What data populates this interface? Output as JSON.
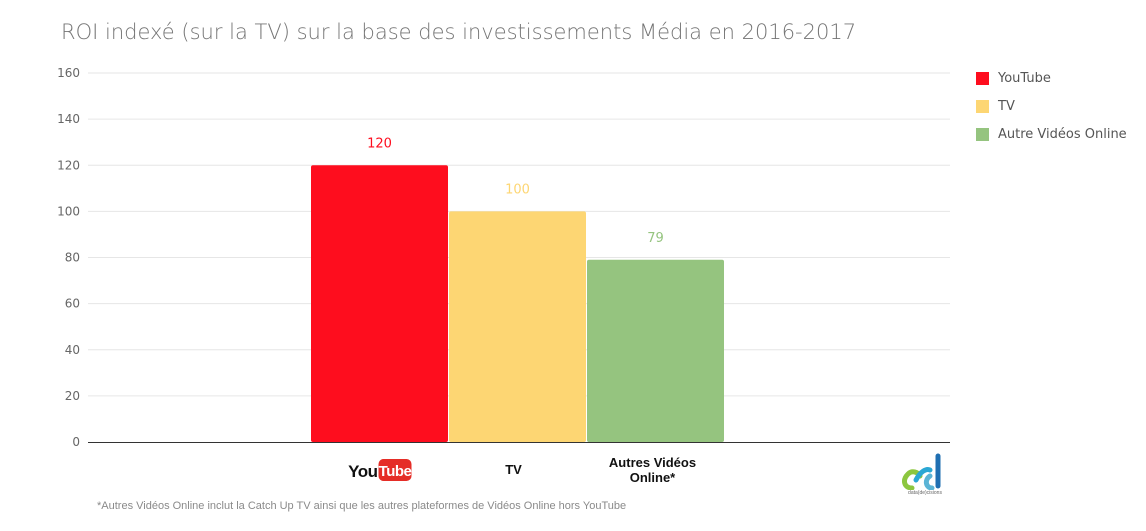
{
  "title": "ROI indexé (sur la TV) sur la base des investissements Média en 2016-2017",
  "legend": [
    {
      "label": "YouTube",
      "color": "#fe0d1e"
    },
    {
      "label": "TV",
      "color": "#fdd673"
    },
    {
      "label": "Autre Vidéos Online",
      "color": "#95c47f"
    }
  ],
  "footnote": "*Autres Vidéos Online inclut la Catch Up TV ainsi que les autres plateformes de Vidéos Online hors YouTube",
  "logo": {
    "text": "data(de)cisions",
    "icon": "data-decisions-logo-icon"
  },
  "youtube_logo": {
    "you": "You",
    "tube": "Tube",
    "icon": "youtube-logo-icon"
  },
  "chart_data": {
    "type": "bar",
    "title": "ROI indexé (sur la TV) sur la base des investissements Média en 2016-2017",
    "categories": [
      "YouTube",
      "TV",
      "Autres Vidéos Online*"
    ],
    "category_labels": [
      "TV",
      "Autres Vidéos",
      "Online*"
    ],
    "series": [
      {
        "name": "YouTube",
        "values": [
          120,
          null,
          null
        ],
        "color": "#fe0d1e"
      },
      {
        "name": "TV",
        "values": [
          null,
          100,
          null
        ],
        "color": "#fdd673"
      },
      {
        "name": "Autre Vidéos Online",
        "values": [
          null,
          null,
          79
        ],
        "color": "#95c47f"
      }
    ],
    "values": [
      120,
      100,
      79
    ],
    "data_labels": [
      "120",
      "100",
      "79"
    ],
    "y_ticks": [
      0,
      20,
      40,
      60,
      80,
      100,
      120,
      140,
      160
    ],
    "ylim": [
      0,
      160
    ],
    "grid": true,
    "legend_position": "right"
  }
}
